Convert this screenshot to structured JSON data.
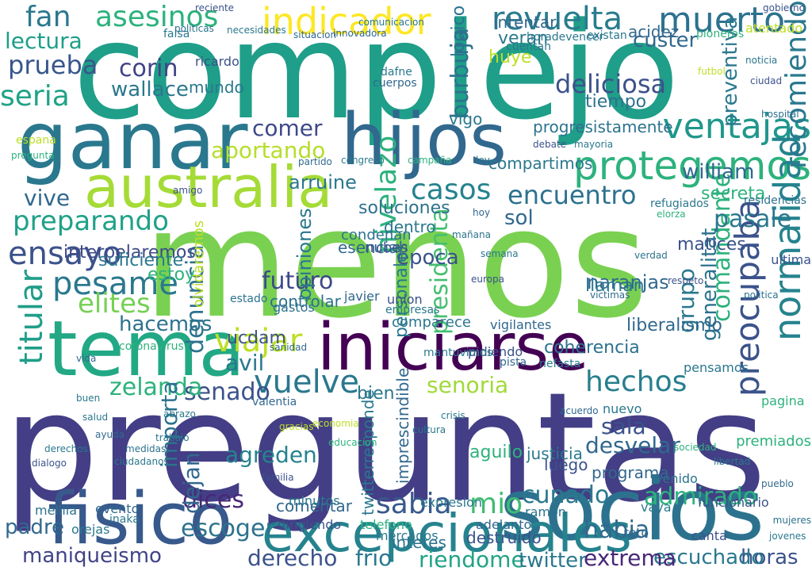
{
  "title": "",
  "words": [
    {
      "text": "complejo",
      "color": "#1f9e89"
    },
    {
      "text": "menos",
      "color": "#7ad151"
    },
    {
      "text": "preguntas",
      "color": "#433e85"
    },
    {
      "text": "tema",
      "color": "#22a884"
    },
    {
      "text": "iniciarse",
      "color": "#440154"
    },
    {
      "text": "ganar",
      "color": "#2a788e"
    },
    {
      "text": "hijos",
      "color": "#31688e"
    },
    {
      "text": "socios",
      "color": "#2c728e"
    },
    {
      "text": "fisico",
      "color": "#38598c"
    },
    {
      "text": "excepcionales",
      "color": "#25838e"
    },
    {
      "text": "australia",
      "color": "#a5db36"
    },
    {
      "text": "indicador",
      "color": "#fde725"
    },
    {
      "text": "protegemos",
      "color": "#2db27d"
    },
    {
      "text": "ventajas",
      "color": "#1f978b"
    },
    {
      "text": "revuelta",
      "color": "#287c8e"
    },
    {
      "text": "muerto",
      "color": "#2c728e"
    },
    {
      "text": "asesinos",
      "color": "#2db27d"
    },
    {
      "text": "fan",
      "color": "#2a788e"
    },
    {
      "text": "lectura",
      "color": "#1f9e89"
    },
    {
      "text": "prueba",
      "color": "#39568c"
    },
    {
      "text": "seria",
      "color": "#20a386"
    },
    {
      "text": "corin",
      "color": "#414487"
    },
    {
      "text": "wallace",
      "color": "#2a788e"
    },
    {
      "text": "comer",
      "color": "#3e4989"
    },
    {
      "text": "casos",
      "color": "#25838e"
    },
    {
      "text": "encuentro",
      "color": "#2c728e"
    },
    {
      "text": "preparando",
      "color": "#1fa188"
    },
    {
      "text": "ensayo",
      "color": "#3b528b"
    },
    {
      "text": "pesame",
      "color": "#2a788e"
    },
    {
      "text": "elites",
      "color": "#75d054"
    },
    {
      "text": "futuro",
      "color": "#3e4989"
    },
    {
      "text": "viajar",
      "color": "#bddf26"
    },
    {
      "text": "titular",
      "color": "#1f9e89"
    },
    {
      "text": "vuelve",
      "color": "#2a788e"
    },
    {
      "text": "hechos",
      "color": "#277f8e"
    },
    {
      "text": "senado",
      "color": "#3b528b"
    },
    {
      "text": "zelanda",
      "color": "#2db27d"
    },
    {
      "text": "senoria",
      "color": "#a0da39"
    },
    {
      "text": "sabia",
      "color": "#38598c"
    },
    {
      "text": "mio",
      "color": "#3fbc73"
    },
    {
      "text": "cunado",
      "color": "#2a788e"
    },
    {
      "text": "admirado",
      "color": "#2db27d"
    },
    {
      "text": "dices",
      "color": "#482878"
    },
    {
      "text": "derecho",
      "color": "#3b528b"
    },
    {
      "text": "frio",
      "color": "#2a788e"
    },
    {
      "text": "riendome",
      "color": "#20a386"
    },
    {
      "text": "maniqueismo",
      "color": "#414487"
    },
    {
      "text": "escoger",
      "color": "#2c728e"
    },
    {
      "text": "padre",
      "color": "#31688e"
    },
    {
      "text": "horas",
      "color": "#3b528b"
    },
    {
      "text": "escuchado",
      "color": "#2a788e"
    },
    {
      "text": "habia",
      "color": "#31688e"
    },
    {
      "text": "twitter",
      "color": "#2a788e"
    },
    {
      "text": "extrema",
      "color": "#482878"
    },
    {
      "text": "normalidad",
      "color": "#25838e"
    },
    {
      "text": "preocupaba",
      "color": "#3b528b"
    },
    {
      "text": "comandante",
      "color": "#2db27d"
    },
    {
      "text": "presidenta",
      "color": "#44bf70"
    },
    {
      "text": "nivelazo",
      "color": "#2db27d"
    },
    {
      "text": "burbuja",
      "color": "#2c728e"
    },
    {
      "text": "deliciosa",
      "color": "#3b528b"
    },
    {
      "text": "pasale",
      "color": "#2a788e"
    },
    {
      "text": "aportando",
      "color": "#b5de2b"
    },
    {
      "text": "vive",
      "color": "#31688e"
    },
    {
      "text": "sol",
      "color": "#31688e"
    },
    {
      "text": "denuncia",
      "color": "#2c728e"
    },
    {
      "text": "importa",
      "color": "#2c728e"
    },
    {
      "text": "dejan",
      "color": "#31688e"
    },
    {
      "text": "avil",
      "color": "#2a788e"
    },
    {
      "text": "agreden",
      "color": "#25838e"
    },
    {
      "text": "sala",
      "color": "#3b528b"
    },
    {
      "text": "desvelar",
      "color": "#31688e"
    },
    {
      "text": "grupo",
      "color": "#2a788e"
    },
    {
      "text": "generalitat",
      "color": "#2c728e"
    },
    {
      "text": "recomiendo",
      "color": "#2a788e"
    },
    {
      "text": "william",
      "color": "#31688e"
    },
    {
      "text": "progresistamente",
      "color": "#2c728e"
    },
    {
      "text": "secreta",
      "color": "#2db27d"
    },
    {
      "text": "preventiva",
      "color": "#2a788e"
    },
    {
      "text": "epoca",
      "color": "#3b528b"
    },
    {
      "text": "liberalismo",
      "color": "#31688e"
    },
    {
      "text": "coherencia",
      "color": "#2c728e"
    },
    {
      "text": "hacemos",
      "color": "#2c728e"
    },
    {
      "text": "opiniones",
      "color": "#2a788e"
    },
    {
      "text": "soluciones",
      "color": "#2c728e"
    },
    {
      "text": "naranjas",
      "color": "#31688e"
    },
    {
      "text": "matices",
      "color": "#3b528b"
    },
    {
      "text": "personales",
      "color": "#2a788e"
    },
    {
      "text": "arruine",
      "color": "#2a788e"
    },
    {
      "text": "custer",
      "color": "#31688e"
    },
    {
      "text": "interpelaremos",
      "color": "#3e4989"
    },
    {
      "text": "suficiente",
      "color": "#2a788e"
    },
    {
      "text": "huye",
      "color": "#bddf26"
    },
    {
      "text": "veran",
      "color": "#2a788e"
    },
    {
      "text": "intentar",
      "color": "#31688e"
    },
    {
      "text": "tiempo",
      "color": "#2c728e"
    },
    {
      "text": "logico",
      "color": "#2c728e"
    },
    {
      "text": "mundo",
      "color": "#2a788e"
    },
    {
      "text": "ucdam",
      "color": "#3b528b"
    },
    {
      "text": "llaman",
      "color": "#2a788e"
    },
    {
      "text": "acidez",
      "color": "#31688e"
    },
    {
      "text": "controlar",
      "color": "#2c728e"
    },
    {
      "text": "dentro",
      "color": "#2a788e"
    },
    {
      "text": "compartimos",
      "color": "#2a788e"
    },
    {
      "text": "bien",
      "color": "#2a788e"
    },
    {
      "text": "luego",
      "color": "#3b528b"
    },
    {
      "text": "estoy",
      "color": "#2db27d"
    },
    {
      "text": "vigo",
      "color": "#2a788e"
    },
    {
      "text": "imprescindible",
      "color": "#31688e"
    },
    {
      "text": "twitterresponde",
      "color": "#2a788e"
    },
    {
      "text": "interes",
      "color": "#2c728e"
    },
    {
      "text": "aguilo",
      "color": "#2db27d"
    },
    {
      "text": "destruido",
      "color": "#3b528b"
    },
    {
      "text": "comentar",
      "color": "#31688e"
    },
    {
      "text": "expresion",
      "color": "#2a788e"
    },
    {
      "text": "justicia",
      "color": "#2a788e"
    },
    {
      "text": "programa",
      "color": "#31688e"
    },
    {
      "text": "funcionario",
      "color": "#3b528b"
    },
    {
      "text": "venido",
      "color": "#2c728e"
    },
    {
      "text": "vaya",
      "color": "#2a788e"
    },
    {
      "text": "canta",
      "color": "#3b528b"
    },
    {
      "text": "reto",
      "color": "#31688e"
    },
    {
      "text": "premiados",
      "color": "#2db27d"
    },
    {
      "text": "olvidaremos",
      "color": "#bddf26"
    },
    {
      "text": "minutos",
      "color": "#2a788e"
    },
    {
      "text": "esencial",
      "color": "#31688e"
    },
    {
      "text": "condenan",
      "color": "#2c728e"
    },
    {
      "text": "nubes",
      "color": "#3b528b"
    },
    {
      "text": "mercados",
      "color": "#2a788e"
    },
    {
      "text": "adelanto",
      "color": "#31688e"
    },
    {
      "text": "ramon",
      "color": "#2c728e"
    },
    {
      "text": "dirigiendo",
      "color": "#3b528b"
    },
    {
      "text": "telefono",
      "color": "#2db27d"
    },
    {
      "text": "valentia",
      "color": "#31688e"
    },
    {
      "text": "orejas",
      "color": "#2a788e"
    },
    {
      "text": "melilla",
      "color": "#2c728e"
    },
    {
      "text": "evento",
      "color": "#31688e"
    },
    {
      "text": "inaka",
      "color": "#2a788e"
    },
    {
      "text": "pagina",
      "color": "#2db27d"
    },
    {
      "text": "ultima",
      "color": "#3b528b"
    },
    {
      "text": "nuevo",
      "color": "#2a788e"
    },
    {
      "text": "gastos",
      "color": "#2c728e"
    },
    {
      "text": "empresas",
      "color": "#2a788e"
    },
    {
      "text": "union",
      "color": "#3b528b"
    },
    {
      "text": "javier",
      "color": "#31688e"
    },
    {
      "text": "pensamos",
      "color": "#2a788e"
    },
    {
      "text": "estado",
      "color": "#2c728e"
    },
    {
      "text": "ricardo",
      "color": "#3b528b"
    },
    {
      "text": "falsa",
      "color": "#2a788e"
    },
    {
      "text": "cuerpos",
      "color": "#31688e"
    },
    {
      "text": "dafne",
      "color": "#2a788e"
    },
    {
      "text": "atentado",
      "color": "#bddf26"
    },
    {
      "text": "pioneros",
      "color": "#2db27d"
    },
    {
      "text": "existan",
      "color": "#2a788e"
    },
    {
      "text": "cuentan",
      "color": "#2a788e"
    },
    {
      "text": "situacion",
      "color": "#31688e"
    },
    {
      "text": "necesidades",
      "color": "#2a788e"
    },
    {
      "text": "politicas",
      "color": "#2c728e"
    },
    {
      "text": "reciente",
      "color": "#3b528b"
    },
    {
      "text": "comunicacion",
      "color": "#2a788e"
    },
    {
      "text": "horadevencer",
      "color": "#2a788e"
    },
    {
      "text": "innovadora",
      "color": "#31688e"
    },
    {
      "text": "residencias",
      "color": "#2c728e"
    },
    {
      "text": "refugiados",
      "color": "#2a788e"
    },
    {
      "text": "elorza",
      "color": "#2db27d"
    },
    {
      "text": "vigilantes",
      "color": "#31688e"
    },
    {
      "text": "comparece",
      "color": "#2a788e"
    },
    {
      "text": "pidiendo",
      "color": "#3b528b"
    },
    {
      "text": "mantuvimos",
      "color": "#2a788e"
    },
    {
      "text": "pista",
      "color": "#31688e"
    },
    {
      "text": "nefasta",
      "color": "#2a788e"
    },
    {
      "text": "hospital",
      "color": "#2c728e"
    },
    {
      "text": "gobierno",
      "color": "#3b528b"
    },
    {
      "text": "espana",
      "color": "#bddf26"
    },
    {
      "text": "pregunta",
      "color": "#2db27d"
    },
    {
      "text": "derechos",
      "color": "#2a788e"
    },
    {
      "text": "dialogo",
      "color": "#3b528b"
    },
    {
      "text": "ciudadanos",
      "color": "#2a788e"
    },
    {
      "text": "ayuda",
      "color": "#31688e"
    },
    {
      "text": "medidas",
      "color": "#2c728e"
    },
    {
      "text": "trabajo",
      "color": "#2a788e"
    },
    {
      "text": "coronavirus",
      "color": "#2db27d"
    },
    {
      "text": "sanidad",
      "color": "#31688e"
    },
    {
      "text": "abrazo",
      "color": "#2a788e"
    },
    {
      "text": "amigo",
      "color": "#3b528b"
    },
    {
      "text": "buen",
      "color": "#2a788e"
    },
    {
      "text": "gracias",
      "color": "#bddf26"
    },
    {
      "text": "hoy",
      "color": "#31688e"
    },
    {
      "text": "mañana",
      "color": "#2c728e"
    },
    {
      "text": "semana",
      "color": "#2a788e"
    },
    {
      "text": "europa",
      "color": "#3b528b"
    },
    {
      "text": "crisis",
      "color": "#2a788e"
    },
    {
      "text": "acuerdo",
      "color": "#31688e"
    },
    {
      "text": "sociedad",
      "color": "#2db27d"
    },
    {
      "text": "libertad",
      "color": "#2a788e"
    },
    {
      "text": "respeto",
      "color": "#3b528b"
    },
    {
      "text": "politica",
      "color": "#2c728e"
    },
    {
      "text": "vida",
      "color": "#31688e"
    },
    {
      "text": "salud",
      "color": "#2a788e"
    },
    {
      "text": "economia",
      "color": "#bddf26"
    },
    {
      "text": "educacion",
      "color": "#2db27d"
    },
    {
      "text": "cultura",
      "color": "#2a788e"
    },
    {
      "text": "familia",
      "color": "#3b528b"
    },
    {
      "text": "victimas",
      "color": "#31688e"
    },
    {
      "text": "verdad",
      "color": "#2c728e"
    },
    {
      "text": "mayoria",
      "color": "#2a788e"
    },
    {
      "text": "debate",
      "color": "#3b528b"
    },
    {
      "text": "congreso",
      "color": "#2a788e"
    },
    {
      "text": "partido",
      "color": "#31688e"
    },
    {
      "text": "campaña",
      "color": "#2db27d"
    },
    {
      "text": "ley",
      "color": "#2a788e"
    },
    {
      "text": "futbol",
      "color": "#bddf26"
    },
    {
      "text": "noticia",
      "color": "#2a788e"
    },
    {
      "text": "ciudad",
      "color": "#3b528b"
    },
    {
      "text": "pueblo",
      "color": "#31688e"
    },
    {
      "text": "mujeres",
      "color": "#2c728e"
    },
    {
      "text": "jovenes",
      "color": "#2a788e"
    }
  ]
}
